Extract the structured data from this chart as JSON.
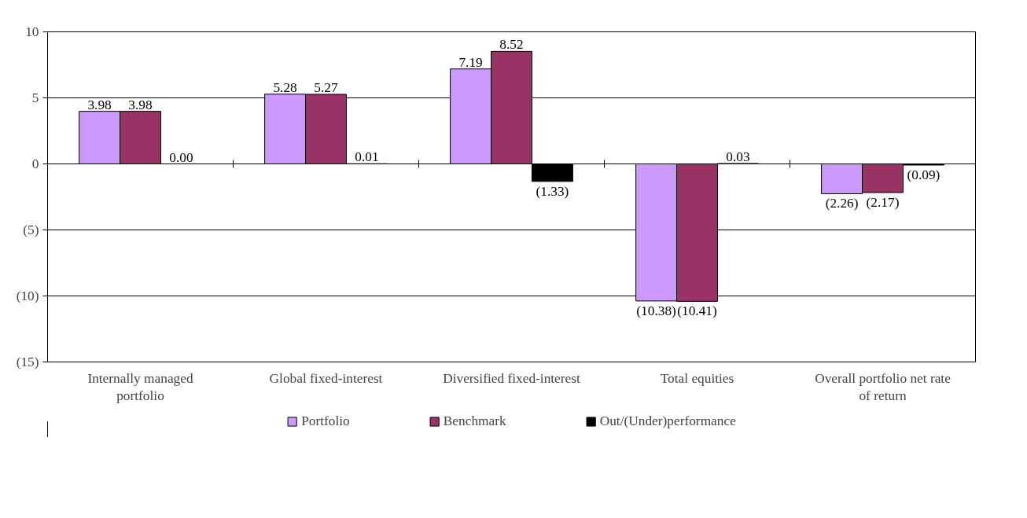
{
  "chart_data": {
    "type": "bar",
    "categories": [
      "Internally managed portfolio",
      "Global fixed-interest",
      "Diversified fixed-interest",
      "Total equities",
      "Overall portfolio net rate of return"
    ],
    "series": [
      {
        "name": "Portfolio",
        "color": "#cc99ff",
        "values": [
          3.98,
          5.28,
          7.19,
          -10.38,
          -2.26
        ],
        "value_labels": [
          "3.98",
          "5.28",
          "7.19",
          "(10.38)",
          "(2.26)"
        ]
      },
      {
        "name": "Benchmark",
        "color": "#993366",
        "values": [
          3.98,
          5.27,
          8.52,
          -10.41,
          -2.17
        ],
        "value_labels": [
          "3.98",
          "5.27",
          "8.52",
          "(10.41)",
          "(2.17)"
        ]
      },
      {
        "name": "Out/(Under)performance",
        "color": "#000000",
        "values": [
          0.0,
          0.01,
          -1.33,
          0.03,
          -0.09
        ],
        "value_labels": [
          "0.00",
          "0.01",
          "(1.33)",
          "0.03",
          "(0.09)"
        ]
      }
    ],
    "ylim": [
      -15,
      10
    ],
    "yticks": [
      {
        "value": -15,
        "label": "(15)"
      },
      {
        "value": -10,
        "label": "(10)"
      },
      {
        "value": -5,
        "label": "(5)"
      },
      0,
      5,
      10
    ],
    "grid": "y",
    "legend": "bottom"
  }
}
